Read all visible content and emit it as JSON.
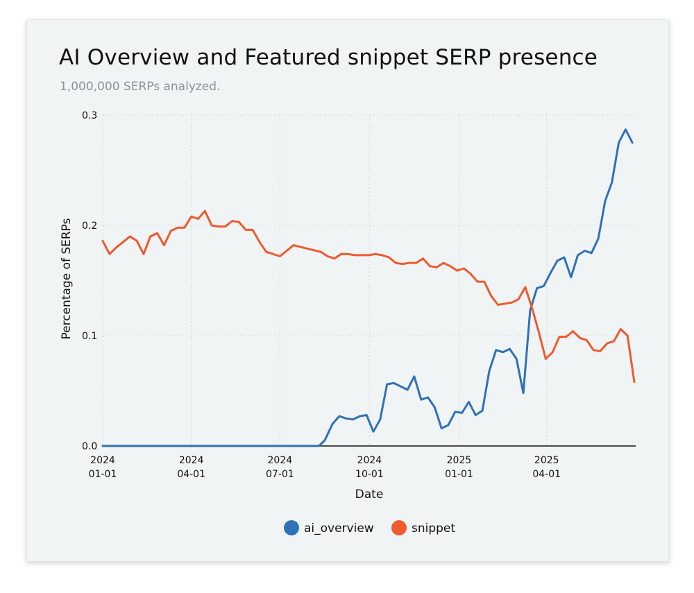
{
  "chart_data": {
    "type": "line",
    "title": "AI Overview and Featured snippet SERP presence",
    "subtitle": "1,000,000 SERPs analyzed.",
    "xlabel": "Date",
    "ylabel": "Percentage of SERPs",
    "ylim": [
      0,
      0.3
    ],
    "xlim": [
      "2024-01-01",
      "2025-06-30"
    ],
    "grid": true,
    "legend_position": "bottom-center",
    "x_ticks": [
      {
        "date": "2024-01-01",
        "line1": "2024",
        "line2": "01-01"
      },
      {
        "date": "2024-04-01",
        "line1": "2024",
        "line2": "04-01"
      },
      {
        "date": "2024-07-01",
        "line1": "2024",
        "line2": "07-01"
      },
      {
        "date": "2024-10-01",
        "line1": "2024",
        "line2": "10-01"
      },
      {
        "date": "2025-01-01",
        "line1": "2025",
        "line2": "01-01"
      },
      {
        "date": "2025-04-01",
        "line1": "2025",
        "line2": "04-01"
      }
    ],
    "y_ticks": [
      {
        "value": 0,
        "label": "0.0"
      },
      {
        "value": 0.1,
        "label": "0.1"
      },
      {
        "value": 0.2,
        "label": "0.2"
      },
      {
        "value": 0.3,
        "label": "0.3"
      }
    ],
    "series": [
      {
        "name": "ai_overview",
        "color": "#2f71b5",
        "points": [
          [
            "2024-01-01",
            0.0
          ],
          [
            "2024-02-01",
            0.0
          ],
          [
            "2024-03-01",
            0.0
          ],
          [
            "2024-04-01",
            0.0
          ],
          [
            "2024-05-01",
            0.0
          ],
          [
            "2024-06-01",
            0.0
          ],
          [
            "2024-07-01",
            0.0
          ],
          [
            "2024-08-01",
            0.0
          ],
          [
            "2024-08-10",
            0.0
          ],
          [
            "2024-08-16",
            0.005
          ],
          [
            "2024-08-24",
            0.02
          ],
          [
            "2024-08-31",
            0.027
          ],
          [
            "2024-09-07",
            0.025
          ],
          [
            "2024-09-14",
            0.024
          ],
          [
            "2024-09-21",
            0.027
          ],
          [
            "2024-09-28",
            0.028
          ],
          [
            "2024-10-05",
            0.013
          ],
          [
            "2024-10-12",
            0.024
          ],
          [
            "2024-10-19",
            0.056
          ],
          [
            "2024-10-26",
            0.057
          ],
          [
            "2024-11-02",
            0.054
          ],
          [
            "2024-11-09",
            0.051
          ],
          [
            "2024-11-16",
            0.063
          ],
          [
            "2024-11-23",
            0.042
          ],
          [
            "2024-11-30",
            0.044
          ],
          [
            "2024-12-07",
            0.035
          ],
          [
            "2024-12-14",
            0.016
          ],
          [
            "2024-12-21",
            0.019
          ],
          [
            "2024-12-28",
            0.031
          ],
          [
            "2025-01-04",
            0.03
          ],
          [
            "2025-01-11",
            0.04
          ],
          [
            "2025-01-18",
            0.028
          ],
          [
            "2025-01-25",
            0.032
          ],
          [
            "2025-02-01",
            0.068
          ],
          [
            "2025-02-08",
            0.087
          ],
          [
            "2025-02-15",
            0.085
          ],
          [
            "2025-02-22",
            0.088
          ],
          [
            "2025-03-01",
            0.079
          ],
          [
            "2025-03-08",
            0.048
          ],
          [
            "2025-03-15",
            0.123
          ],
          [
            "2025-03-22",
            0.143
          ],
          [
            "2025-03-29",
            0.145
          ],
          [
            "2025-04-05",
            0.157
          ],
          [
            "2025-04-12",
            0.168
          ],
          [
            "2025-04-19",
            0.171
          ],
          [
            "2025-04-26",
            0.153
          ],
          [
            "2025-05-03",
            0.173
          ],
          [
            "2025-05-10",
            0.177
          ],
          [
            "2025-05-17",
            0.175
          ],
          [
            "2025-05-24",
            0.188
          ],
          [
            "2025-05-31",
            0.222
          ],
          [
            "2025-06-07",
            0.239
          ],
          [
            "2025-06-14",
            0.275
          ],
          [
            "2025-06-21",
            0.287
          ],
          [
            "2025-06-28",
            0.275
          ]
        ]
      },
      {
        "name": "snippet",
        "color": "#ee5a2d",
        "points": [
          [
            "2024-01-01",
            0.186
          ],
          [
            "2024-01-08",
            0.174
          ],
          [
            "2024-01-15",
            0.18
          ],
          [
            "2024-01-22",
            0.185
          ],
          [
            "2024-01-29",
            0.19
          ],
          [
            "2024-02-05",
            0.186
          ],
          [
            "2024-02-12",
            0.174
          ],
          [
            "2024-02-19",
            0.19
          ],
          [
            "2024-02-26",
            0.193
          ],
          [
            "2024-03-04",
            0.182
          ],
          [
            "2024-03-11",
            0.195
          ],
          [
            "2024-03-18",
            0.198
          ],
          [
            "2024-03-25",
            0.198
          ],
          [
            "2024-04-01",
            0.208
          ],
          [
            "2024-04-08",
            0.206
          ],
          [
            "2024-04-15",
            0.213
          ],
          [
            "2024-04-22",
            0.2
          ],
          [
            "2024-04-29",
            0.199
          ],
          [
            "2024-05-06",
            0.199
          ],
          [
            "2024-05-13",
            0.204
          ],
          [
            "2024-05-20",
            0.203
          ],
          [
            "2024-05-27",
            0.196
          ],
          [
            "2024-06-03",
            0.196
          ],
          [
            "2024-06-10",
            0.185
          ],
          [
            "2024-06-17",
            0.176
          ],
          [
            "2024-06-24",
            0.174
          ],
          [
            "2024-07-01",
            0.172
          ],
          [
            "2024-07-15",
            0.182
          ],
          [
            "2024-07-29",
            0.179
          ],
          [
            "2024-08-12",
            0.176
          ],
          [
            "2024-08-19",
            0.172
          ],
          [
            "2024-08-26",
            0.17
          ],
          [
            "2024-09-02",
            0.174
          ],
          [
            "2024-09-09",
            0.174
          ],
          [
            "2024-09-16",
            0.173
          ],
          [
            "2024-09-23",
            0.173
          ],
          [
            "2024-09-30",
            0.173
          ],
          [
            "2024-10-07",
            0.174
          ],
          [
            "2024-10-14",
            0.173
          ],
          [
            "2024-10-21",
            0.171
          ],
          [
            "2024-10-28",
            0.166
          ],
          [
            "2024-11-04",
            0.165
          ],
          [
            "2024-11-11",
            0.166
          ],
          [
            "2024-11-18",
            0.166
          ],
          [
            "2024-11-25",
            0.17
          ],
          [
            "2024-12-02",
            0.163
          ],
          [
            "2024-12-09",
            0.162
          ],
          [
            "2024-12-16",
            0.166
          ],
          [
            "2024-12-23",
            0.163
          ],
          [
            "2024-12-30",
            0.159
          ],
          [
            "2025-01-06",
            0.161
          ],
          [
            "2025-01-13",
            0.156
          ],
          [
            "2025-01-20",
            0.149
          ],
          [
            "2025-01-27",
            0.149
          ],
          [
            "2025-02-03",
            0.136
          ],
          [
            "2025-02-10",
            0.128
          ],
          [
            "2025-02-17",
            0.129
          ],
          [
            "2025-02-24",
            0.13
          ],
          [
            "2025-03-03",
            0.133
          ],
          [
            "2025-03-10",
            0.144
          ],
          [
            "2025-03-17",
            0.125
          ],
          [
            "2025-03-24",
            0.103
          ],
          [
            "2025-03-31",
            0.079
          ],
          [
            "2025-04-07",
            0.085
          ],
          [
            "2025-04-14",
            0.099
          ],
          [
            "2025-04-21",
            0.099
          ],
          [
            "2025-04-28",
            0.104
          ],
          [
            "2025-05-05",
            0.098
          ],
          [
            "2025-05-12",
            0.096
          ],
          [
            "2025-05-19",
            0.087
          ],
          [
            "2025-05-26",
            0.086
          ],
          [
            "2025-06-02",
            0.093
          ],
          [
            "2025-06-09",
            0.095
          ],
          [
            "2025-06-16",
            0.106
          ],
          [
            "2025-06-23",
            0.1
          ],
          [
            "2025-06-30",
            0.058
          ]
        ]
      }
    ]
  }
}
